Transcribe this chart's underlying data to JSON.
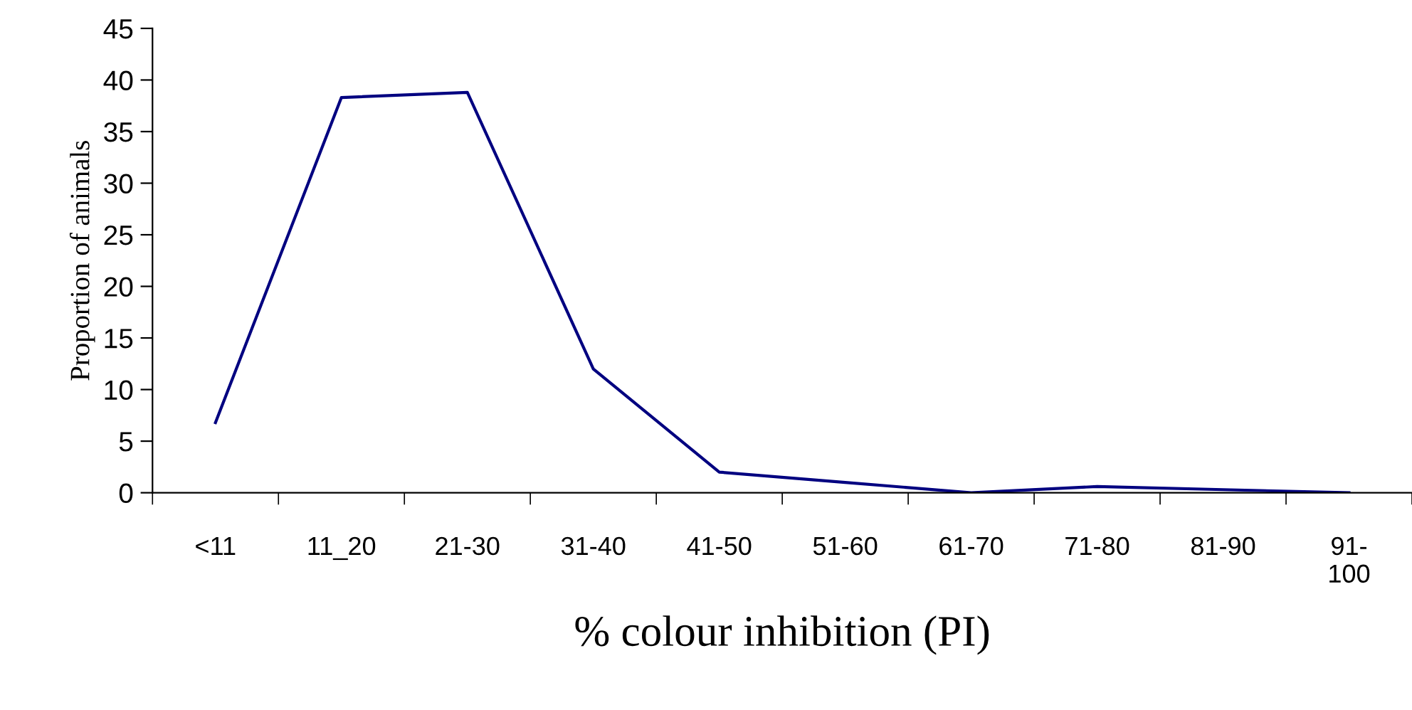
{
  "chart_data": {
    "type": "line",
    "xlabel": "% colour inhibition (PI)",
    "ylabel": "Proportion of animals",
    "categories": [
      "<11",
      "11_20",
      "21-30",
      "31-40",
      "41-50",
      "51-60",
      "61-70",
      "71-80",
      "81-90",
      "91-\n100"
    ],
    "series": [
      {
        "color": "#000080",
        "values": [
          6.8,
          38.3,
          38.8,
          12,
          2,
          1,
          0,
          0.6,
          0.3,
          0
        ]
      }
    ],
    "ylim": [
      0,
      45
    ],
    "yticks": [
      0,
      5,
      10,
      15,
      20,
      25,
      30,
      35,
      40,
      45
    ],
    "grid": false,
    "legend": false,
    "marker": "none",
    "line_style": "solid"
  }
}
